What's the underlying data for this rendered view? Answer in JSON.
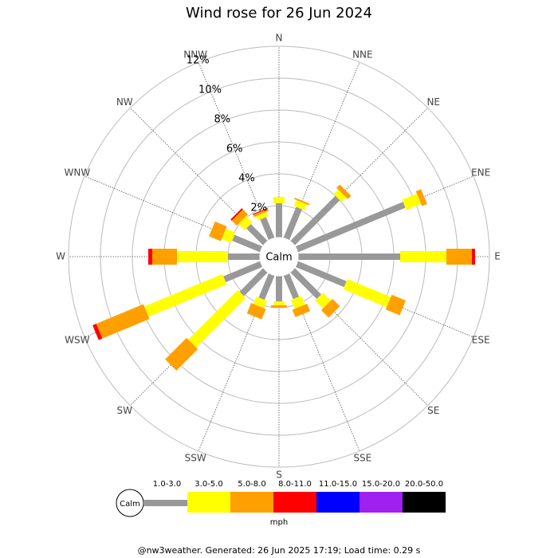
{
  "chart_data": {
    "type": "windrose",
    "title": "Wind rose for 26 Jun 2024",
    "center_label": "Calm",
    "units": "mph",
    "footer": "@nw3weather. Generated: 26 Jun 2025 17:19; Load time: 0.29 s",
    "categories": [
      "N",
      "NNE",
      "NE",
      "ENE",
      "E",
      "ESE",
      "SE",
      "SSE",
      "S",
      "SSW",
      "SW",
      "WSW",
      "W",
      "WNW",
      "NW",
      "NNW"
    ],
    "rlim": [
      0,
      12
    ],
    "rticks": [
      {
        "value": 2,
        "label": "2%"
      },
      {
        "value": 4,
        "label": "4%"
      },
      {
        "value": 6,
        "label": "6%"
      },
      {
        "value": 8,
        "label": "8%"
      },
      {
        "value": 10,
        "label": "10%"
      },
      {
        "value": 12,
        "label": "12%"
      }
    ],
    "series": [
      {
        "name": "1.0-3.0",
        "color": "#999999",
        "values": [
          2.15,
          2.1,
          4.0,
          7.3,
          6.4,
          3.3,
          2.35,
          1.6,
          1.6,
          1.65,
          2.1,
          2.5,
          2.0,
          1.9,
          1.5,
          1.4
        ]
      },
      {
        "name": "3.0-5.0",
        "color": "#ffff00",
        "values": [
          0.4,
          0.4,
          0.4,
          1.0,
          2.9,
          2.95,
          0.7,
          0.6,
          0.25,
          0.5,
          4.4,
          5.3,
          3.2,
          0.65,
          0.55,
          0.3
        ]
      },
      {
        "name": "5.0-8.0",
        "color": "#ffa000",
        "values": [
          0,
          0.1,
          0.3,
          0.35,
          1.6,
          0.95,
          0.65,
          0.5,
          0.15,
          0.7,
          1.9,
          3.2,
          1.55,
          0.8,
          0.45,
          0.15
        ]
      },
      {
        "name": "8.0-11.0",
        "color": "#ff0000",
        "values": [
          0,
          0,
          0,
          0,
          0.2,
          0,
          0,
          0,
          0,
          0,
          0,
          0.25,
          0.25,
          0,
          0.1,
          0.05
        ]
      },
      {
        "name": "11.0-15.0",
        "color": "#0000ff",
        "values": [
          0,
          0,
          0,
          0,
          0,
          0,
          0,
          0,
          0,
          0,
          0,
          0,
          0,
          0,
          0,
          0
        ]
      },
      {
        "name": "15.0-20.0",
        "color": "#a020f0",
        "values": [
          0,
          0,
          0,
          0,
          0,
          0,
          0,
          0,
          0,
          0,
          0,
          0,
          0,
          0,
          0,
          0
        ]
      },
      {
        "name": "20.0-50.0",
        "color": "#000000",
        "values": [
          0,
          0,
          0,
          0,
          0,
          0,
          0,
          0,
          0,
          0,
          0,
          0,
          0,
          0,
          0,
          0
        ]
      }
    ]
  }
}
